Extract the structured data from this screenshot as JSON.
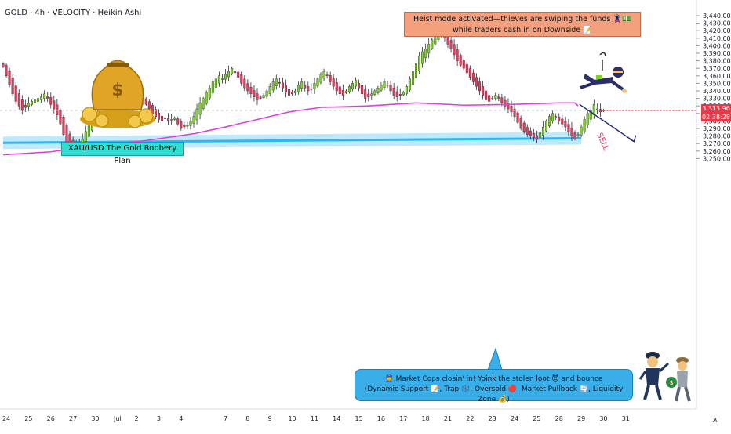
{
  "header": {
    "title": "GOLD · 4h · VELOCITY · Heikin Ashi"
  },
  "annotations": {
    "plan_label": "XAU/USD The Gold Robbery Plan",
    "heist_line1": "Heist mode activated—thieves are swiping the funds 🦹💵",
    "heist_line2": "while traders cash in on Downside 📝",
    "cops_line1": "👮 Market Cops closin' in! Yoink the stolen loot 😈 and bounce",
    "cops_line2": "(Dynamic Support 📝, Trap 🕸️, Oversold 🔴, Market Pullback 🔄, Liquidity Zone 💰)",
    "sell_label": "SELL"
  },
  "price_tag": {
    "price": "3,313.96",
    "countdown": "02:38:28"
  },
  "axis_corner": "A",
  "colors": {
    "up": "#7ed321",
    "down": "#f23658",
    "ma": "#e23ce0",
    "support": "#29b6f6",
    "support_band": "#b3e5fc",
    "price_line": "#f23645",
    "box_teal": "#2ee0d4",
    "box_orange": "#f4a07e",
    "box_blue": "#3aaee8"
  },
  "icons": {
    "money_bag": "money-bag-icon",
    "thief": "thief-icon",
    "police": "police-icon",
    "robber": "robber-icon",
    "settings": "auto-scale-icon"
  },
  "chart_data": {
    "type": "candlestick",
    "style": "Heikin Ashi",
    "symbol": "GOLD",
    "timeframe": "4h",
    "indicator": "VELOCITY",
    "y_ticks": [
      3250,
      3260,
      3270,
      3280,
      3290,
      3300,
      3310,
      3320,
      3330,
      3340,
      3350,
      3360,
      3370,
      3380,
      3390,
      3400,
      3410,
      3420,
      3430,
      3440
    ],
    "y_tick_labels": [
      "3,250.00",
      "3,260.00",
      "3,270.00",
      "3,280.00",
      "3,290.00",
      "3,300.00",
      "3,310.00",
      "3,320.00",
      "3,330.00",
      "3,340.00",
      "3,350.00",
      "3,360.00",
      "3,370.00",
      "3,380.00",
      "3,390.00",
      "3,400.00",
      "3,410.00",
      "3,420.00",
      "3,430.00",
      "3,440.00"
    ],
    "x_ticks": [
      {
        "i": 1,
        "label": "24"
      },
      {
        "i": 8,
        "label": "25"
      },
      {
        "i": 15,
        "label": "26"
      },
      {
        "i": 22,
        "label": "27"
      },
      {
        "i": 29,
        "label": "30"
      },
      {
        "i": 36,
        "label": "Jul"
      },
      {
        "i": 42,
        "label": "2"
      },
      {
        "i": 49,
        "label": "3"
      },
      {
        "i": 56,
        "label": "4"
      },
      {
        "i": 70,
        "label": "7"
      },
      {
        "i": 77,
        "label": "8"
      },
      {
        "i": 84,
        "label": "9"
      },
      {
        "i": 91,
        "label": "10"
      },
      {
        "i": 98,
        "label": "11"
      },
      {
        "i": 105,
        "label": "14"
      },
      {
        "i": 112,
        "label": "15"
      },
      {
        "i": 119,
        "label": "16"
      },
      {
        "i": 126,
        "label": "17"
      },
      {
        "i": 133,
        "label": "18"
      },
      {
        "i": 140,
        "label": "21"
      },
      {
        "i": 147,
        "label": "22"
      },
      {
        "i": 154,
        "label": "23"
      },
      {
        "i": 161,
        "label": "24"
      },
      {
        "i": 168,
        "label": "25"
      },
      {
        "i": 175,
        "label": "28"
      },
      {
        "i": 182,
        "label": "29"
      },
      {
        "i": 189,
        "label": "30"
      },
      {
        "i": 196,
        "label": "31"
      }
    ],
    "current_price": 3313.96,
    "support_line": {
      "start_i": 0,
      "end_i": 182,
      "start_value": 3271,
      "end_value": 3277
    },
    "sell_projection": {
      "from_i": 180,
      "from_value": 3322,
      "to_i": 190,
      "to_value": 3283
    },
    "ma_points": [
      [
        0,
        3255
      ],
      [
        15,
        3259
      ],
      [
        29,
        3267
      ],
      [
        45,
        3274
      ],
      [
        60,
        3283
      ],
      [
        70,
        3292
      ],
      [
        80,
        3302
      ],
      [
        90,
        3312
      ],
      [
        100,
        3318
      ],
      [
        115,
        3320
      ],
      [
        130,
        3324
      ],
      [
        145,
        3321
      ],
      [
        160,
        3322
      ],
      [
        175,
        3324
      ],
      [
        180,
        3324
      ],
      [
        181,
        3320
      ]
    ],
    "closes": [
      3372,
      3360,
      3348,
      3336,
      3326,
      3320,
      3314,
      3318,
      3324,
      3326,
      3328,
      3330,
      3332,
      3336,
      3330,
      3322,
      3316,
      3308,
      3296,
      3282,
      3272,
      3266,
      3264,
      3268,
      3270,
      3276,
      3286,
      3296,
      3306,
      3318,
      3330,
      3340,
      3344,
      3338,
      3332,
      3330,
      3334,
      3342,
      3348,
      3352,
      3346,
      3338,
      3330,
      3326,
      3328,
      3322,
      3316,
      3310,
      3306,
      3302,
      3300,
      3304,
      3300,
      3302,
      3304,
      3296,
      3290,
      3292,
      3294,
      3300,
      3306,
      3316,
      3324,
      3330,
      3338,
      3344,
      3352,
      3356,
      3360,
      3356,
      3362,
      3366,
      3370,
      3364,
      3358,
      3350,
      3344,
      3340,
      3336,
      3332,
      3328,
      3330,
      3334,
      3340,
      3346,
      3352,
      3356,
      3350,
      3344,
      3338,
      3334,
      3336,
      3340,
      3348,
      3352,
      3344,
      3340,
      3342,
      3350,
      3356,
      3362,
      3366,
      3360,
      3352,
      3346,
      3340,
      3336,
      3334,
      3340,
      3346,
      3350,
      3354,
      3344,
      3336,
      3330,
      3332,
      3336,
      3340,
      3344,
      3348,
      3352,
      3348,
      3340,
      3334,
      3332,
      3334,
      3338,
      3346,
      3356,
      3366,
      3376,
      3386,
      3392,
      3396,
      3402,
      3408,
      3414,
      3420,
      3416,
      3410,
      3402,
      3396,
      3388,
      3380,
      3374,
      3370,
      3364,
      3358,
      3352,
      3346,
      3340,
      3334,
      3328,
      3326,
      3330,
      3334,
      3330,
      3324,
      3320,
      3316,
      3312,
      3306,
      3298,
      3290,
      3286,
      3282,
      3280,
      3278,
      3276,
      3284,
      3292,
      3300,
      3306,
      3310,
      3306,
      3300,
      3296,
      3292,
      3286,
      3280,
      3276,
      3282,
      3292,
      3302,
      3310,
      3314,
      3322,
      3316,
      3312,
      3313.96
    ]
  }
}
